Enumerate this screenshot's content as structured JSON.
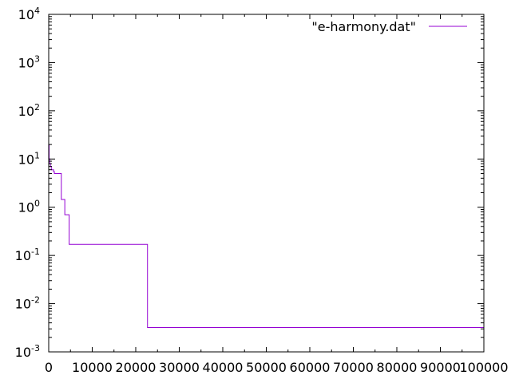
{
  "chart_data": {
    "type": "line",
    "title": "",
    "xlabel": "",
    "ylabel": "",
    "x_scale": "linear",
    "y_scale": "log",
    "xlim": [
      0,
      100000
    ],
    "ylim": [
      0.001,
      10000
    ],
    "x_ticks": [
      {
        "value": 0,
        "label": "0"
      },
      {
        "value": 10000,
        "label": "10000"
      },
      {
        "value": 20000,
        "label": "20000"
      },
      {
        "value": 30000,
        "label": "30000"
      },
      {
        "value": 40000,
        "label": "40000"
      },
      {
        "value": 50000,
        "label": "50000"
      },
      {
        "value": 60000,
        "label": "60000"
      },
      {
        "value": 70000,
        "label": "70000"
      },
      {
        "value": 80000,
        "label": "80000"
      },
      {
        "value": 90000,
        "label": "90000"
      },
      {
        "value": 100000,
        "label": "100000"
      }
    ],
    "y_ticks": [
      {
        "value": 0.001,
        "base": "10",
        "exp": "-3"
      },
      {
        "value": 0.01,
        "base": "10",
        "exp": "-2"
      },
      {
        "value": 0.1,
        "base": "10",
        "exp": "-1"
      },
      {
        "value": 1,
        "base": "10",
        "exp": "0"
      },
      {
        "value": 10,
        "base": "10",
        "exp": "1"
      },
      {
        "value": 100,
        "base": "10",
        "exp": "2"
      },
      {
        "value": 1000,
        "base": "10",
        "exp": "3"
      },
      {
        "value": 10000,
        "base": "10",
        "exp": "4"
      }
    ],
    "grid": false,
    "legend_position": "top-right",
    "series": [
      {
        "name": "\"e-harmony.dat\"",
        "color": "#9400d3",
        "step": true,
        "points": [
          {
            "x": 0,
            "y": 20
          },
          {
            "x": 100,
            "y": 10
          },
          {
            "x": 250,
            "y": 8
          },
          {
            "x": 400,
            "y": 7
          },
          {
            "x": 600,
            "y": 6
          },
          {
            "x": 1100,
            "y": 5.5
          },
          {
            "x": 1300,
            "y": 5
          },
          {
            "x": 2900,
            "y": 1.45
          },
          {
            "x": 3700,
            "y": 0.7
          },
          {
            "x": 4700,
            "y": 0.17
          },
          {
            "x": 22700,
            "y": 0.0032
          },
          {
            "x": 100000,
            "y": 0.0032
          }
        ]
      }
    ]
  }
}
